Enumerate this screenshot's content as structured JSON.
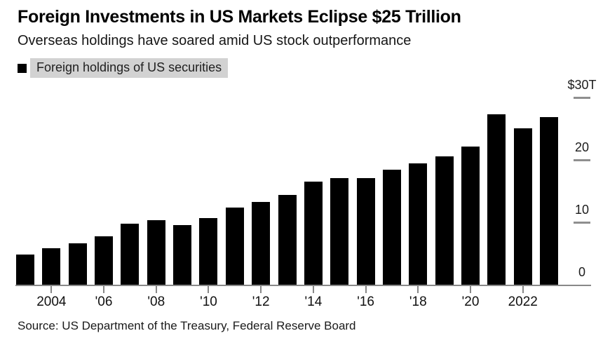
{
  "header": {
    "title": "Foreign Investments in US Markets Eclipse $25 Trillion",
    "subtitle": "Overseas holdings have soared amid US stock outperformance",
    "legend": {
      "label": "Foreign holdings of US securities",
      "swatch_color": "#000000",
      "highlight_color": "#d2d2d2"
    }
  },
  "chart_data": {
    "type": "bar",
    "title": "Foreign Investments in US Markets Eclipse $25 Trillion",
    "subtitle": "Overseas holdings have soared amid US stock outperformance",
    "series_name": "Foreign holdings of US securities",
    "unit": "trillions of US dollars",
    "categories": [
      2003,
      2004,
      2005,
      2006,
      2007,
      2008,
      2009,
      2010,
      2011,
      2012,
      2013,
      2014,
      2015,
      2016,
      2017,
      2018,
      2019,
      2020,
      2021,
      2022,
      2023
    ],
    "values": [
      4.8,
      5.8,
      6.6,
      7.7,
      9.8,
      10.3,
      9.6,
      10.7,
      12.4,
      13.3,
      14.4,
      16.5,
      17.1,
      17.1,
      18.4,
      19.4,
      20.6,
      22.1,
      27.3,
      25.1,
      26.9
    ],
    "bar_color": "#000000",
    "ylim": [
      0,
      30
    ],
    "y_axis_side": "right",
    "grid": false,
    "legend_position": "top-left",
    "y_ticks": [
      {
        "value": 30,
        "label": "$30T",
        "dash": true
      },
      {
        "value": 20,
        "label": "20",
        "dash": true
      },
      {
        "value": 10,
        "label": "10",
        "dash": true
      },
      {
        "value": 0,
        "label": "0",
        "dash": false
      }
    ],
    "x_ticks": [
      {
        "year": 2004,
        "label": "2004"
      },
      {
        "year": 2006,
        "label": "'06"
      },
      {
        "year": 2008,
        "label": "'08"
      },
      {
        "year": 2010,
        "label": "'10"
      },
      {
        "year": 2012,
        "label": "'12"
      },
      {
        "year": 2014,
        "label": "'14"
      },
      {
        "year": 2016,
        "label": "'16"
      },
      {
        "year": 2018,
        "label": "'18"
      },
      {
        "year": 2020,
        "label": "'20"
      },
      {
        "year": 2022,
        "label": "2022"
      }
    ]
  },
  "source": "Source: US Department of the Treasury, Federal Reserve Board"
}
